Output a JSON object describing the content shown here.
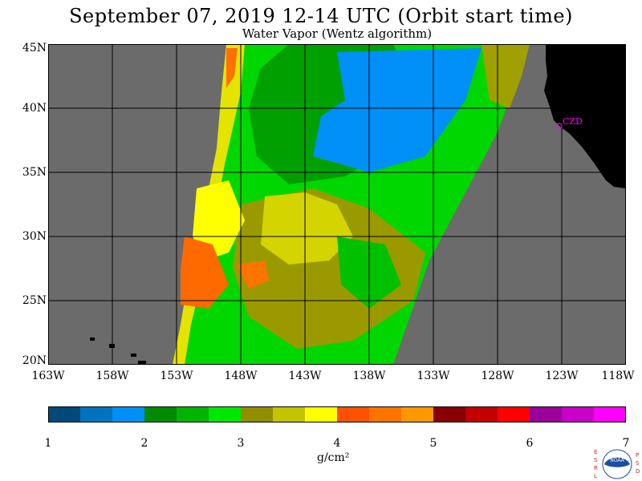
{
  "title": "September 07, 2019  12-14 UTC  (Orbit start time)",
  "subtitle": "Water Vapor (Wentz algorithm)",
  "map": {
    "lat_labels": [
      "45N",
      "40N",
      "35N",
      "30N",
      "25N",
      "20N"
    ],
    "lon_labels": [
      "163W",
      "158W",
      "153W",
      "148W",
      "143W",
      "138W",
      "133W",
      "128W",
      "123W",
      "118W"
    ],
    "station_label": "CZD",
    "colors": {
      "no_data": "#6b6b6b",
      "land": "#000000",
      "grid": "#000000",
      "station": "#ff00ff"
    }
  },
  "colorbar": {
    "ticks": [
      "1",
      "2",
      "3",
      "4",
      "5",
      "6",
      "7"
    ],
    "units": "g/cm²",
    "colors": [
      "#004a7a",
      "#0072c0",
      "#0090f8",
      "#008a00",
      "#00b400",
      "#00e800",
      "#8f8f00",
      "#c4c400",
      "#ffff00",
      "#ff5000",
      "#ff7400",
      "#ff9800",
      "#8a0000",
      "#c20000",
      "#ff0000",
      "#9a009a",
      "#c800c8",
      "#ff00ff"
    ]
  },
  "logo": {
    "left_letters": "ESRL",
    "right_letters": "PSD",
    "center_text": "NOAA"
  }
}
